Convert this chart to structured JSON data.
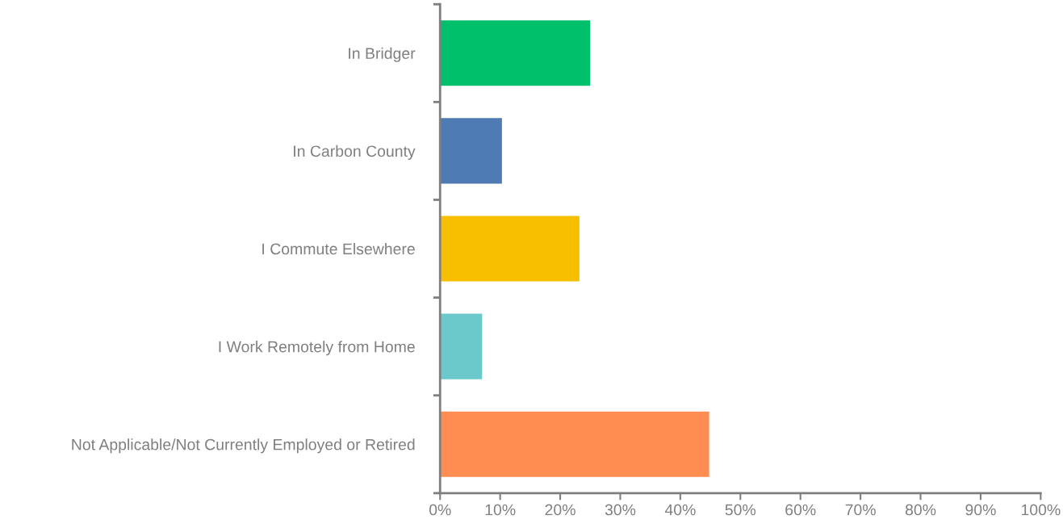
{
  "chart_data": {
    "type": "bar",
    "orientation": "horizontal",
    "categories": [
      "In Bridger",
      "In Carbon County",
      "I Commute Elsewhere",
      "I Work Remotely from Home",
      "Not Applicable/Not Currently Employed or Retired"
    ],
    "values": [
      25.0,
      10.3,
      23.2,
      7.0,
      44.8
    ],
    "colors": [
      "#00c06b",
      "#4f7bb5",
      "#f8bf00",
      "#6bc9cc",
      "#ff8c50"
    ],
    "xlim": [
      0,
      100
    ],
    "xticks": [
      {
        "value": 0,
        "label": "0%"
      },
      {
        "value": 10,
        "label": "10%"
      },
      {
        "value": 20,
        "label": "20%"
      },
      {
        "value": 30,
        "label": "30%"
      },
      {
        "value": 40,
        "label": "40%"
      },
      {
        "value": 50,
        "label": "50%"
      },
      {
        "value": 60,
        "label": "60%"
      },
      {
        "value": 70,
        "label": "70%"
      },
      {
        "value": 80,
        "label": "80%"
      },
      {
        "value": 90,
        "label": "90%"
      },
      {
        "value": 100,
        "label": "100%"
      }
    ],
    "grid": false,
    "legend": false
  }
}
